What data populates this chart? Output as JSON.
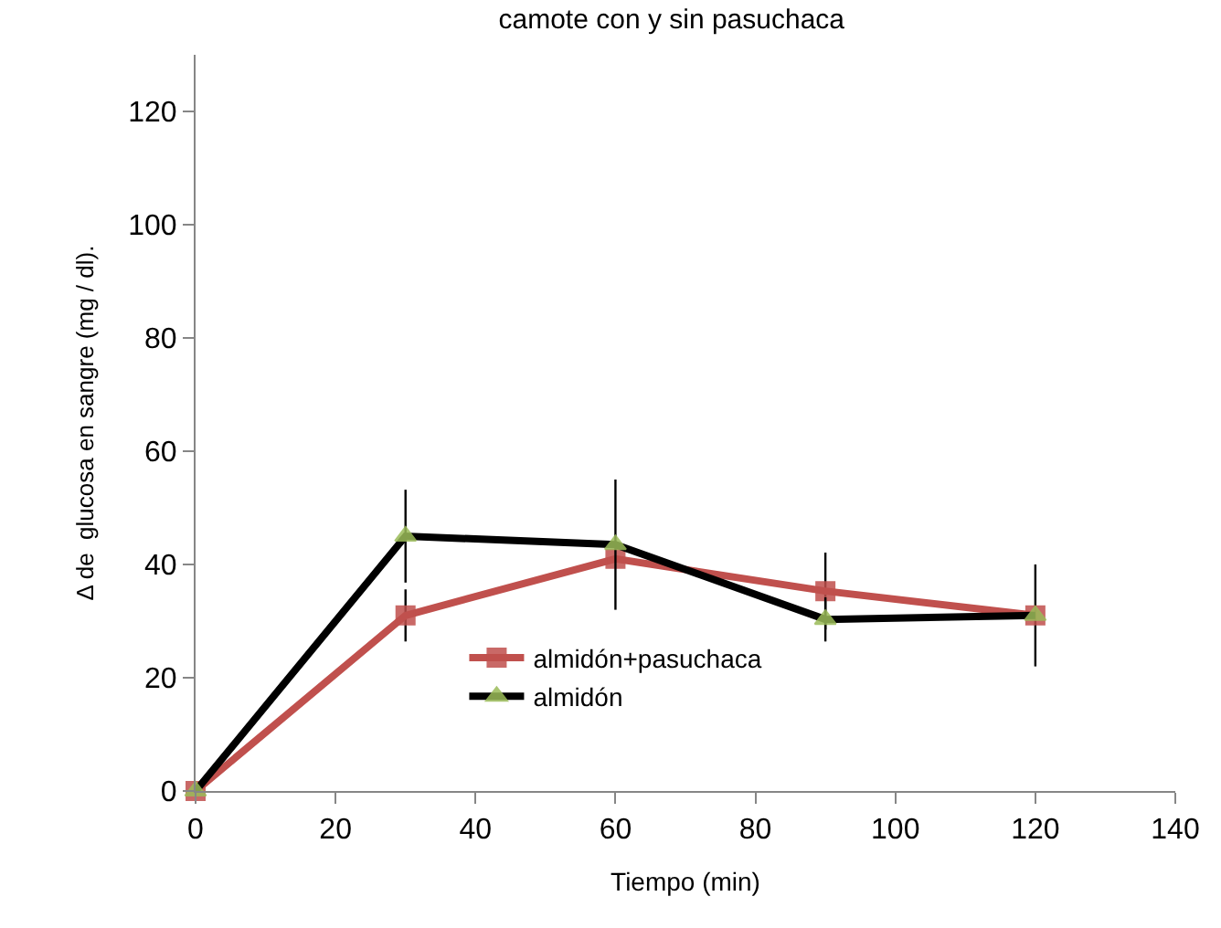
{
  "chart_data": {
    "type": "line",
    "title": "camote con y sin pasuchaca",
    "xlabel": "Tiempo (min)",
    "ylabel": "Δ de  glucosa en sangre (mg / dl).",
    "x": [
      0,
      30,
      60,
      90,
      120
    ],
    "series": [
      {
        "name": "almidón+pasuchaca",
        "color": "#c0504d",
        "marker": "square",
        "values": [
          0,
          31,
          41,
          35.3,
          31
        ],
        "errors": [
          null,
          4.6,
          null,
          6.8,
          9
        ]
      },
      {
        "name": "almidón",
        "color": "#000000",
        "marker": "triangle",
        "values": [
          0,
          45,
          43.5,
          30.3,
          31
        ],
        "errors": [
          null,
          8.2,
          11.5,
          3.9,
          null
        ]
      }
    ],
    "xlim": [
      0,
      140
    ],
    "xticks": [
      0,
      20,
      40,
      60,
      80,
      100,
      120,
      140
    ],
    "ylim": [
      0,
      130
    ],
    "yticks": [
      0,
      20,
      40,
      60,
      80,
      100,
      120
    ],
    "legend": "bottom",
    "line_style": "solid"
  }
}
